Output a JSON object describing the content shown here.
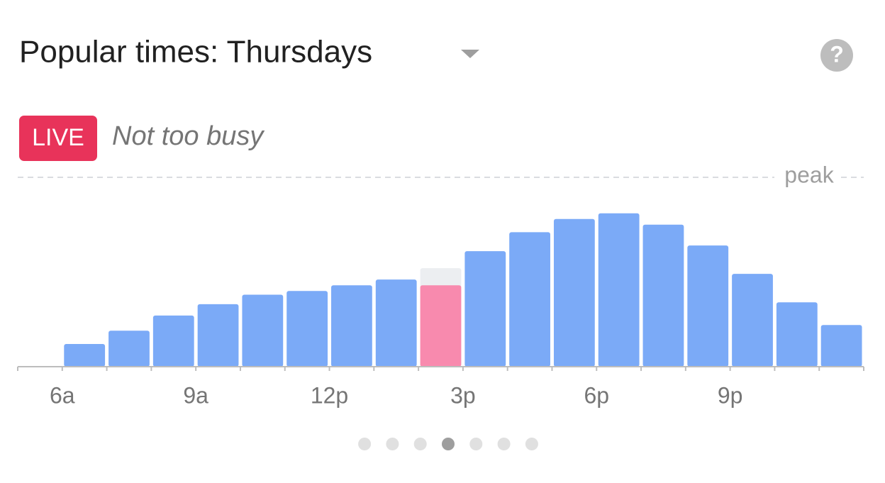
{
  "chart_data": {
    "type": "bar",
    "title": "Popular times: Thursdays",
    "live_badge": "LIVE",
    "live_status": "Not too busy",
    "help_icon": "?",
    "peak_label": "peak",
    "categories": [
      null,
      "6a",
      null,
      null,
      "9a",
      null,
      null,
      "12p",
      null,
      null,
      "3p",
      null,
      null,
      "6p",
      null,
      null,
      "9p",
      null,
      null
    ],
    "values": [
      null,
      12,
      19,
      27,
      33,
      38,
      40,
      43,
      46,
      52,
      61,
      71,
      78,
      81,
      75,
      64,
      49,
      34,
      22
    ],
    "live_values": [
      null,
      null,
      null,
      null,
      null,
      null,
      null,
      null,
      null,
      43,
      null,
      null,
      null,
      null,
      null,
      null,
      null,
      null,
      null
    ],
    "color": "#7baaf7",
    "live_color": "#f88aae",
    "live_usual_color": "#eceef1",
    "ylim": [
      0,
      100
    ],
    "pager": {
      "count": 7,
      "active": 3
    }
  }
}
